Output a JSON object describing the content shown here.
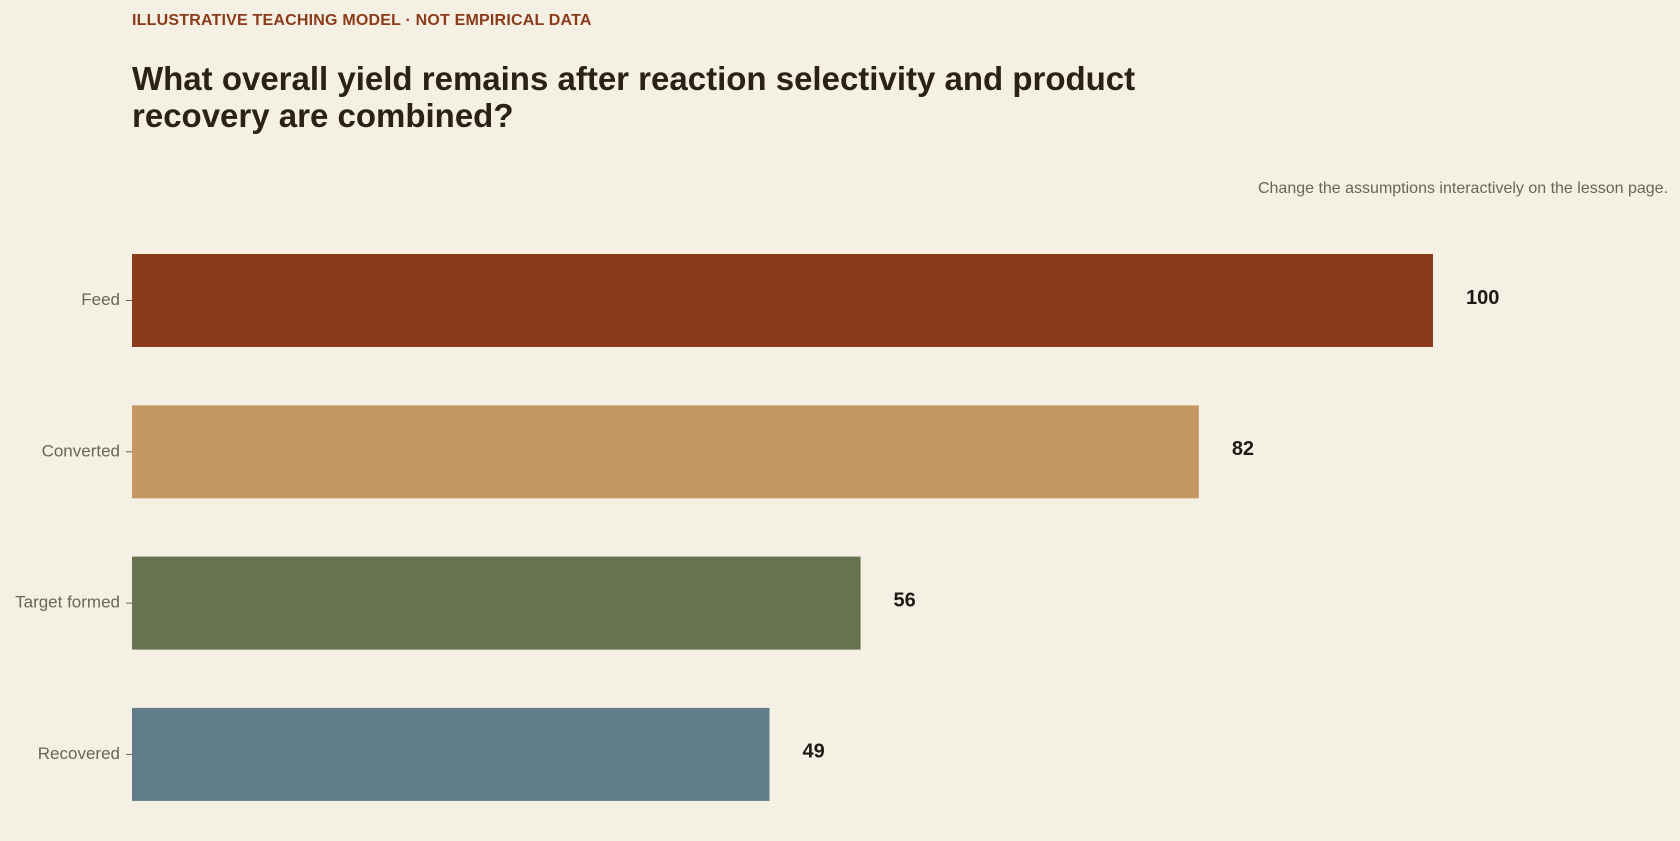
{
  "header": {
    "eyebrow": "ILLUSTRATIVE TEACHING MODEL · NOT EMPIRICAL DATA",
    "title": "What overall yield remains after reaction selectivity and product recovery are combined?",
    "note": "Change the assumptions interactively on the lesson page."
  },
  "chart_data": {
    "type": "bar",
    "orientation": "horizontal",
    "categories": [
      "Feed",
      "Converted",
      "Target formed",
      "Recovered"
    ],
    "values": [
      100,
      82,
      56,
      49
    ],
    "value_labels": [
      "100",
      "82",
      "56",
      "49"
    ],
    "xlim": [
      0,
      100
    ],
    "grid": false,
    "colors": [
      "#8b3a1a",
      "#c59763",
      "#67724f",
      "#607d88"
    ]
  }
}
